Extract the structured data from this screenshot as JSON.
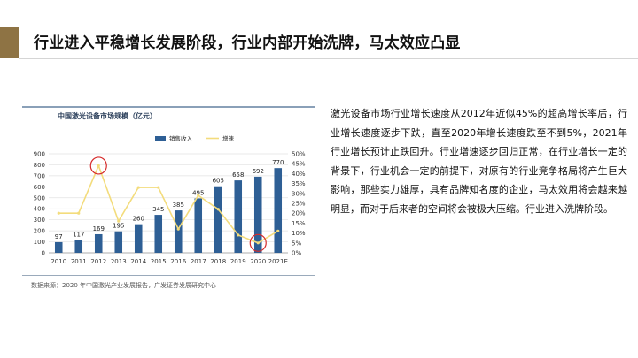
{
  "slide": {
    "title": "行业进入平稳增长发展阶段，行业内部开始洗牌，马太效应凸显",
    "body_text": "激光设备市场行业增长速度从2012年近似45%的超高增长率后，行业增长速度逐步下跌，直至2020年增长速度跌至不到5%，2021年行业增长预计止跌回升。行业增速逐步回归正常，在行业增长一定的背景下，行业机会一定的前提下，对原有的行业竞争格局将产生巨大影响，那些实力雄厚，具有品牌知名度的企业，马太效用将会越来越明显，而对于后来者的空间将会被极大压缩。行业进入洗牌阶段。"
  },
  "chart_data": {
    "type": "bar",
    "title": "中国激光设备市场规模（亿元）",
    "source": "数据来源：2020 年中国激光产业发展报告，广发证券发展研究中心",
    "categories": [
      "2010",
      "2011",
      "2012",
      "2013",
      "2014",
      "2015",
      "2016",
      "2017",
      "2018",
      "2019",
      "2020",
      "2021E"
    ],
    "series": [
      {
        "name": "销售收入",
        "type": "bar",
        "axis": "left",
        "color": "#2e5f95",
        "values": [
          97,
          117,
          169,
          195,
          260,
          345,
          385,
          495,
          605,
          658,
          692,
          770
        ]
      },
      {
        "name": "增速",
        "type": "line",
        "axis": "right",
        "color": "#f3dc7c",
        "values": [
          20,
          20,
          44,
          16,
          33,
          33,
          12,
          29,
          22,
          9,
          5,
          11
        ]
      }
    ],
    "y_left": {
      "min": 0,
      "max": 900,
      "step": 100,
      "ticks": [
        "0",
        "100",
        "200",
        "300",
        "400",
        "500",
        "600",
        "700",
        "800",
        "900"
      ]
    },
    "y_right": {
      "min": 0,
      "max": 50,
      "step": 5,
      "ticks": [
        "0%",
        "5%",
        "10%",
        "15%",
        "20%",
        "25%",
        "30%",
        "35%",
        "40%",
        "45%",
        "50%"
      ]
    },
    "grid": true,
    "legend_position": "top-center",
    "highlights": [
      {
        "series": "增速",
        "category": "2012",
        "color": "#d62b2b"
      },
      {
        "series": "增速",
        "category": "2020",
        "color": "#d62b2b"
      }
    ]
  }
}
